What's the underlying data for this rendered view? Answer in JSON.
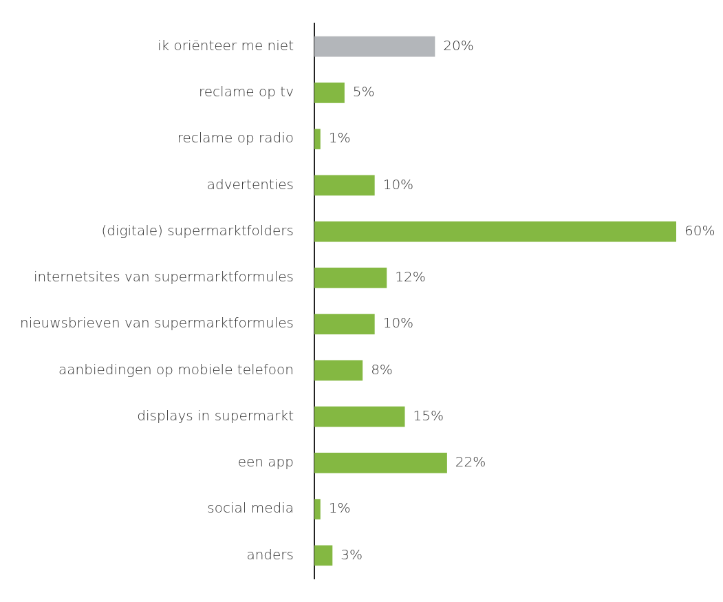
{
  "chart_data": {
    "type": "bar",
    "orientation": "horizontal",
    "categories": [
      "ik oriënteer me niet",
      "reclame op tv",
      "reclame op radio",
      "advertenties",
      "(digitale) supermarktfolders",
      "internetsites van supermarktformules",
      "nieuwsbrieven van supermarktformules",
      "aanbiedingen op mobiele telefoon",
      "displays in supermarkt",
      "een app",
      "social media",
      "anders"
    ],
    "values": [
      20,
      5,
      1,
      10,
      60,
      12,
      10,
      8,
      15,
      22,
      1,
      3
    ],
    "colors": [
      "#b3b6ba",
      "#84b842",
      "#84b842",
      "#84b842",
      "#84b842",
      "#84b842",
      "#84b842",
      "#84b842",
      "#84b842",
      "#84b842",
      "#84b842",
      "#84b842"
    ],
    "value_labels": [
      "20%",
      "5%",
      "1%",
      "10%",
      "60%",
      "12%",
      "10%",
      "8%",
      "15%",
      "22%",
      "1%",
      "3%"
    ],
    "xlim": [
      0,
      60
    ],
    "legend": false,
    "tick_labels": "y"
  }
}
